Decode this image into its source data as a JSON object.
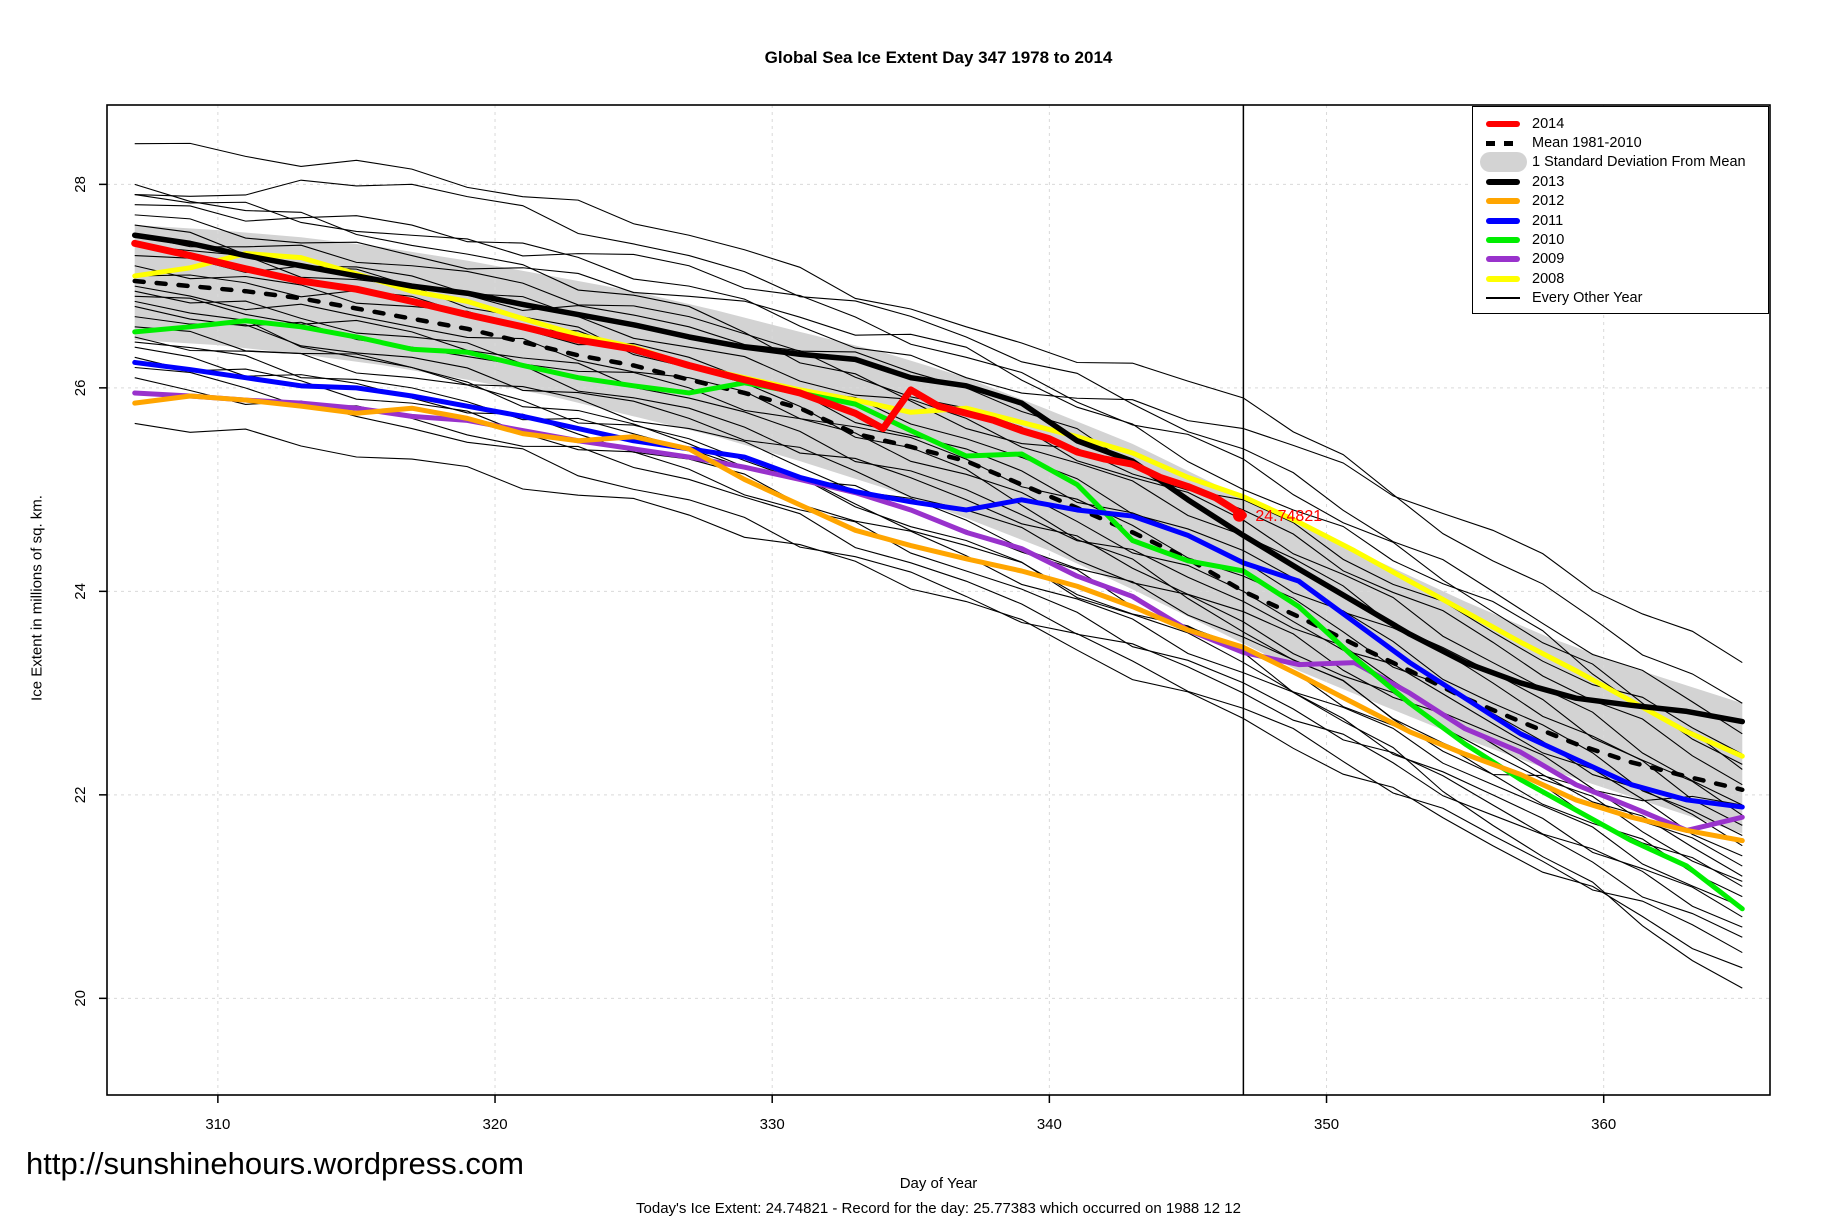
{
  "page": {
    "title": "Global Sea Ice Extent Day 347 1978 to 2014",
    "url_watermark": "http://sunshinehours.wordpress.com",
    "caption": "Today's Ice Extent: 24.74821  - Record for the day: 25.77383 which occurred on 1988 12 12"
  },
  "chart_data": {
    "type": "line",
    "title": "Global Sea Ice Extent Day 347 1978 to 2014",
    "xlabel": "Day of Year",
    "ylabel": "Ice Extent in millions of sq. km.",
    "xlim": [
      306,
      366
    ],
    "ylim": [
      19.05,
      28.78
    ],
    "x_ticks": [
      310,
      320,
      330,
      340,
      350,
      360
    ],
    "y_ticks": [
      20,
      22,
      24,
      26,
      28
    ],
    "grid": true,
    "grid_color": "#d9d9d9",
    "legend_position": "top-right",
    "marker_line": {
      "day": 347,
      "color": "#000000"
    },
    "annotation": {
      "text": "24.74821",
      "day": 347,
      "value": 24.74821,
      "color": "#ff0000"
    },
    "band": {
      "name": "1 Standard Deviation From Mean",
      "color": "#d3d3d3",
      "x": [
        307,
        310,
        313,
        316,
        319,
        322,
        325,
        328,
        331,
        334,
        337,
        340,
        343,
        346,
        349,
        352,
        355,
        358,
        361,
        365
      ],
      "top": [
        27.6,
        27.55,
        27.48,
        27.38,
        27.25,
        27.1,
        26.95,
        26.76,
        26.55,
        26.35,
        26.1,
        25.78,
        25.45,
        25.05,
        24.65,
        24.28,
        23.9,
        23.55,
        23.25,
        22.9
      ],
      "bottom": [
        26.47,
        26.42,
        26.33,
        26.22,
        26.08,
        25.92,
        25.72,
        25.52,
        25.28,
        25.02,
        24.72,
        24.4,
        24.02,
        23.62,
        23.22,
        22.88,
        22.55,
        22.25,
        21.98,
        21.62
      ]
    },
    "days": [
      307,
      309,
      311,
      313,
      315,
      317,
      319,
      321,
      323,
      325,
      327,
      329,
      331,
      333,
      335,
      337,
      339,
      341,
      343,
      345,
      347,
      349,
      351,
      353,
      355,
      357,
      359,
      361,
      363,
      365
    ],
    "series": [
      {
        "name": "Mean 1981-2010",
        "color": "#000000",
        "width": 4.5,
        "dash": "9 13",
        "y": [
          27.05,
          27.0,
          26.95,
          26.88,
          26.78,
          26.68,
          26.58,
          26.45,
          26.32,
          26.22,
          26.08,
          25.95,
          25.8,
          25.55,
          25.42,
          25.28,
          25.05,
          24.82,
          24.58,
          24.32,
          24.0,
          23.75,
          23.48,
          23.22,
          22.95,
          22.72,
          22.5,
          22.32,
          22.18,
          22.05
        ]
      },
      {
        "name": "2008",
        "color": "#ffff00",
        "width": 5,
        "y": [
          27.1,
          27.18,
          27.32,
          27.28,
          27.12,
          26.95,
          26.85,
          26.68,
          26.52,
          26.4,
          26.22,
          26.1,
          25.98,
          25.88,
          25.76,
          25.8,
          25.66,
          25.52,
          25.36,
          25.12,
          24.93,
          24.68,
          24.4,
          24.1,
          23.8,
          23.5,
          23.22,
          22.92,
          22.62,
          22.38
        ]
      },
      {
        "name": "2009",
        "color": "#9932cc",
        "width": 5,
        "y": [
          25.95,
          25.92,
          25.88,
          25.85,
          25.8,
          25.72,
          25.68,
          25.58,
          25.48,
          25.4,
          25.32,
          25.22,
          25.1,
          24.97,
          24.8,
          24.58,
          24.42,
          24.15,
          23.95,
          23.62,
          23.4,
          23.28,
          23.3,
          23.0,
          22.65,
          22.42,
          22.1,
          21.88,
          21.65,
          21.78
        ]
      },
      {
        "name": "2010",
        "color": "#00ee00",
        "width": 5,
        "y": [
          26.55,
          26.6,
          26.66,
          26.6,
          26.5,
          26.38,
          26.35,
          26.22,
          26.1,
          26.02,
          25.95,
          26.05,
          25.95,
          25.84,
          25.58,
          25.33,
          25.35,
          25.05,
          24.5,
          24.3,
          24.2,
          23.85,
          23.35,
          22.9,
          22.5,
          22.15,
          21.85,
          21.55,
          21.3,
          20.88
        ]
      },
      {
        "name": "2011",
        "color": "#0000ff",
        "width": 5,
        "y": [
          26.25,
          26.18,
          26.1,
          26.02,
          26.0,
          25.92,
          25.82,
          25.72,
          25.6,
          25.48,
          25.4,
          25.32,
          25.12,
          24.98,
          24.88,
          24.8,
          24.9,
          24.8,
          24.74,
          24.55,
          24.28,
          24.1,
          23.7,
          23.3,
          22.95,
          22.6,
          22.35,
          22.1,
          21.95,
          21.88
        ]
      },
      {
        "name": "2012",
        "color": "#ffa500",
        "width": 5,
        "y": [
          25.85,
          25.92,
          25.88,
          25.82,
          25.75,
          25.8,
          25.7,
          25.55,
          25.48,
          25.52,
          25.4,
          25.1,
          24.85,
          24.6,
          24.45,
          24.32,
          24.2,
          24.05,
          23.85,
          23.62,
          23.45,
          23.18,
          22.9,
          22.62,
          22.4,
          22.2,
          21.95,
          21.78,
          21.65,
          21.55
        ]
      },
      {
        "name": "2013",
        "color": "#000000",
        "width": 5.5,
        "y": [
          27.5,
          27.42,
          27.3,
          27.2,
          27.1,
          27.0,
          26.93,
          26.82,
          26.72,
          26.62,
          26.5,
          26.4,
          26.33,
          26.28,
          26.1,
          26.02,
          25.85,
          25.48,
          25.28,
          24.9,
          24.55,
          24.22,
          23.9,
          23.58,
          23.3,
          23.1,
          22.95,
          22.88,
          22.82,
          22.72
        ]
      },
      {
        "name": "2014",
        "color": "#ff0000",
        "width": 7,
        "x": [
          307,
          309,
          311,
          313,
          315,
          317,
          319,
          321,
          323,
          325,
          327,
          329,
          331,
          333,
          334,
          335,
          336,
          337,
          338,
          339,
          340,
          341,
          342,
          343,
          344,
          345,
          346,
          347
        ],
        "y": [
          27.42,
          27.3,
          27.17,
          27.05,
          26.97,
          26.85,
          26.72,
          26.6,
          26.47,
          26.38,
          26.22,
          26.08,
          25.95,
          25.75,
          25.6,
          25.98,
          25.82,
          25.75,
          25.68,
          25.58,
          25.5,
          25.37,
          25.3,
          25.25,
          25.12,
          25.03,
          24.92,
          24.748
        ]
      }
    ],
    "background_years": {
      "name": "Every Other Year",
      "color": "#000000",
      "width": 1.1,
      "x": [
        307,
        317,
        327,
        337,
        347,
        356,
        365
      ],
      "lines": [
        [
          28.4,
          28.15,
          27.5,
          26.6,
          25.9,
          24.3,
          22.9
        ],
        [
          27.9,
          28.0,
          27.3,
          26.5,
          25.4,
          24.0,
          22.6
        ],
        [
          27.9,
          27.5,
          27.2,
          26.3,
          25.3,
          23.8,
          22.3
        ],
        [
          27.7,
          27.3,
          26.9,
          26.4,
          25.0,
          23.9,
          22.25
        ],
        [
          27.5,
          27.2,
          26.7,
          26.0,
          24.8,
          23.5,
          22.1
        ],
        [
          27.4,
          27.0,
          26.6,
          25.8,
          24.7,
          23.3,
          21.9
        ],
        [
          27.3,
          27.1,
          26.4,
          25.7,
          24.55,
          23.2,
          21.8
        ],
        [
          27.2,
          26.8,
          26.3,
          25.5,
          24.4,
          23.1,
          21.7
        ],
        [
          27.1,
          26.9,
          26.2,
          25.4,
          24.3,
          22.9,
          21.6
        ],
        [
          27.0,
          26.6,
          26.1,
          25.3,
          24.15,
          22.8,
          21.5
        ],
        [
          26.95,
          26.5,
          26.0,
          25.15,
          24.0,
          22.7,
          21.4
        ],
        [
          26.9,
          26.55,
          25.9,
          25.0,
          23.9,
          22.6,
          21.3
        ],
        [
          26.8,
          26.4,
          25.8,
          24.9,
          23.8,
          22.5,
          21.2
        ],
        [
          26.7,
          26.3,
          25.7,
          24.8,
          23.7,
          22.4,
          21.15
        ],
        [
          26.6,
          26.2,
          25.6,
          24.7,
          23.55,
          22.3,
          21.1
        ],
        [
          26.5,
          26.1,
          25.5,
          24.6,
          23.45,
          22.2,
          21.0
        ],
        [
          26.45,
          26.0,
          25.4,
          24.5,
          23.3,
          22.1,
          20.9
        ],
        [
          26.4,
          25.9,
          25.3,
          24.35,
          23.2,
          22.0,
          20.8
        ],
        [
          26.3,
          25.85,
          25.2,
          24.2,
          23.1,
          21.9,
          20.7
        ],
        [
          26.2,
          25.7,
          25.1,
          24.1,
          23.0,
          21.8,
          20.6
        ],
        [
          26.1,
          25.6,
          24.9,
          23.95,
          22.85,
          21.6,
          20.45
        ],
        [
          25.65,
          25.3,
          24.75,
          23.9,
          22.75,
          21.5,
          20.3
        ],
        [
          27.6,
          27.0,
          26.2,
          25.2,
          23.6,
          22.2,
          21.9
        ],
        [
          28.0,
          27.4,
          26.8,
          25.6,
          24.9,
          23.6,
          22.4
        ],
        [
          26.85,
          26.2,
          25.45,
          24.45,
          23.4,
          21.7,
          20.1
        ],
        [
          27.8,
          27.6,
          27.0,
          26.1,
          25.6,
          24.6,
          23.3
        ]
      ]
    },
    "legend": {
      "items": [
        {
          "label": "2014",
          "type": "thick-line",
          "color": "#ff0000"
        },
        {
          "label": "Mean 1981-2010",
          "type": "dashed-line",
          "color": "#000000"
        },
        {
          "label": "1 Standard Deviation From Mean",
          "type": "band",
          "color": "#d3d3d3"
        },
        {
          "label": "2013",
          "type": "thick-line",
          "color": "#000000"
        },
        {
          "label": "2012",
          "type": "thick-line",
          "color": "#ffa500"
        },
        {
          "label": "2011",
          "type": "thick-line",
          "color": "#0000ff"
        },
        {
          "label": "2010",
          "type": "thick-line",
          "color": "#00ee00"
        },
        {
          "label": "2009",
          "type": "thick-line",
          "color": "#9932cc"
        },
        {
          "label": "2008",
          "type": "thick-line",
          "color": "#ffff00"
        },
        {
          "label": "Every Other Year",
          "type": "thin-line",
          "color": "#000000"
        }
      ]
    }
  }
}
